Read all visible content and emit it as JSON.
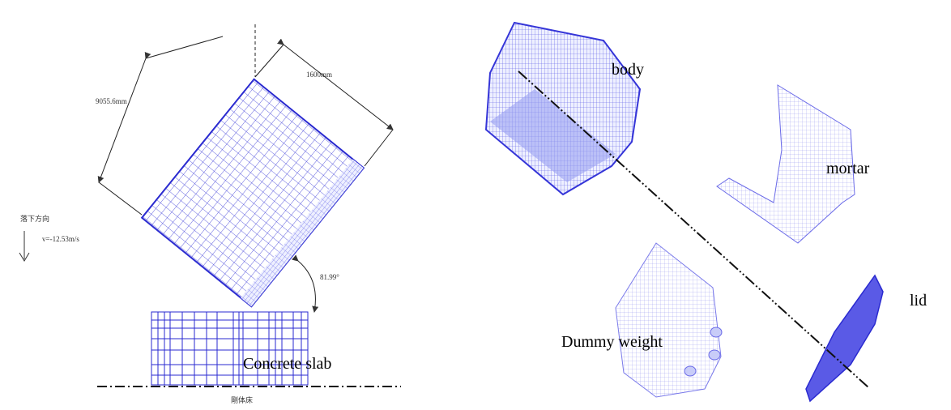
{
  "left_figure": {
    "dimension_length": "9055.6mm",
    "dimension_width": "1600mm",
    "drop_direction": "落下方向",
    "velocity": "v=-12.53m/s",
    "angle": "81.99°",
    "slab_label": "Concrete slab",
    "floor_label": "剛体床"
  },
  "right_figure": {
    "parts": [
      "body",
      "mortar",
      "lid",
      "Dummy weight"
    ]
  }
}
